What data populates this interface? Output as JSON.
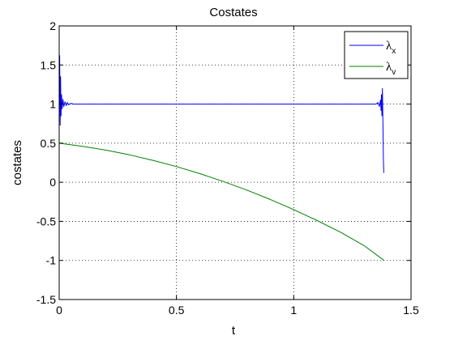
{
  "chart_data": {
    "type": "line",
    "title": "Costates",
    "xlabel": "t",
    "ylabel": "costates",
    "xlim": [
      0,
      1.5
    ],
    "ylim": [
      -1.5,
      2
    ],
    "xticks": [
      "0",
      "0.5",
      "1",
      "1.5"
    ],
    "yticks": [
      "-1.5",
      "-1",
      "-0.5",
      "0",
      "0.5",
      "1",
      "1.5",
      "2"
    ],
    "grid": true,
    "legend_position": "top-right",
    "series": [
      {
        "name": "λ",
        "subscript": "x",
        "color": "#0000ff",
        "x": [
          0,
          0.002,
          0.004,
          0.006,
          0.008,
          0.01,
          0.013,
          0.016,
          0.02,
          0.025,
          0.03,
          0.035,
          0.04,
          0.05,
          0.06,
          0.08,
          0.1,
          0.2,
          0.3,
          0.5,
          0.7,
          0.9,
          1.1,
          1.3,
          1.35,
          1.36,
          1.365,
          1.37,
          1.372,
          1.374,
          1.376,
          1.378,
          1.38,
          1.382,
          1.384
        ],
        "y": [
          1.0,
          1.62,
          0.73,
          1.35,
          0.85,
          1.12,
          0.94,
          1.06,
          0.97,
          1.03,
          0.98,
          1.02,
          0.99,
          1.01,
          1.0,
          1.0,
          1.0,
          1.0,
          1.0,
          1.0,
          1.0,
          1.0,
          1.0,
          1.0,
          1.0,
          1.02,
          0.97,
          1.05,
          0.92,
          1.12,
          0.85,
          1.2,
          0.78,
          0.3,
          0.12
        ]
      },
      {
        "name": "λ",
        "subscript": "v",
        "color": "#008000",
        "x": [
          0,
          0.1,
          0.2,
          0.3,
          0.4,
          0.5,
          0.6,
          0.7,
          0.8,
          0.9,
          1.0,
          1.1,
          1.2,
          1.3,
          1.385
        ],
        "y": [
          0.5,
          0.46,
          0.41,
          0.35,
          0.28,
          0.2,
          0.11,
          0.01,
          -0.1,
          -0.22,
          -0.35,
          -0.49,
          -0.64,
          -0.81,
          -1.0
        ]
      }
    ]
  }
}
